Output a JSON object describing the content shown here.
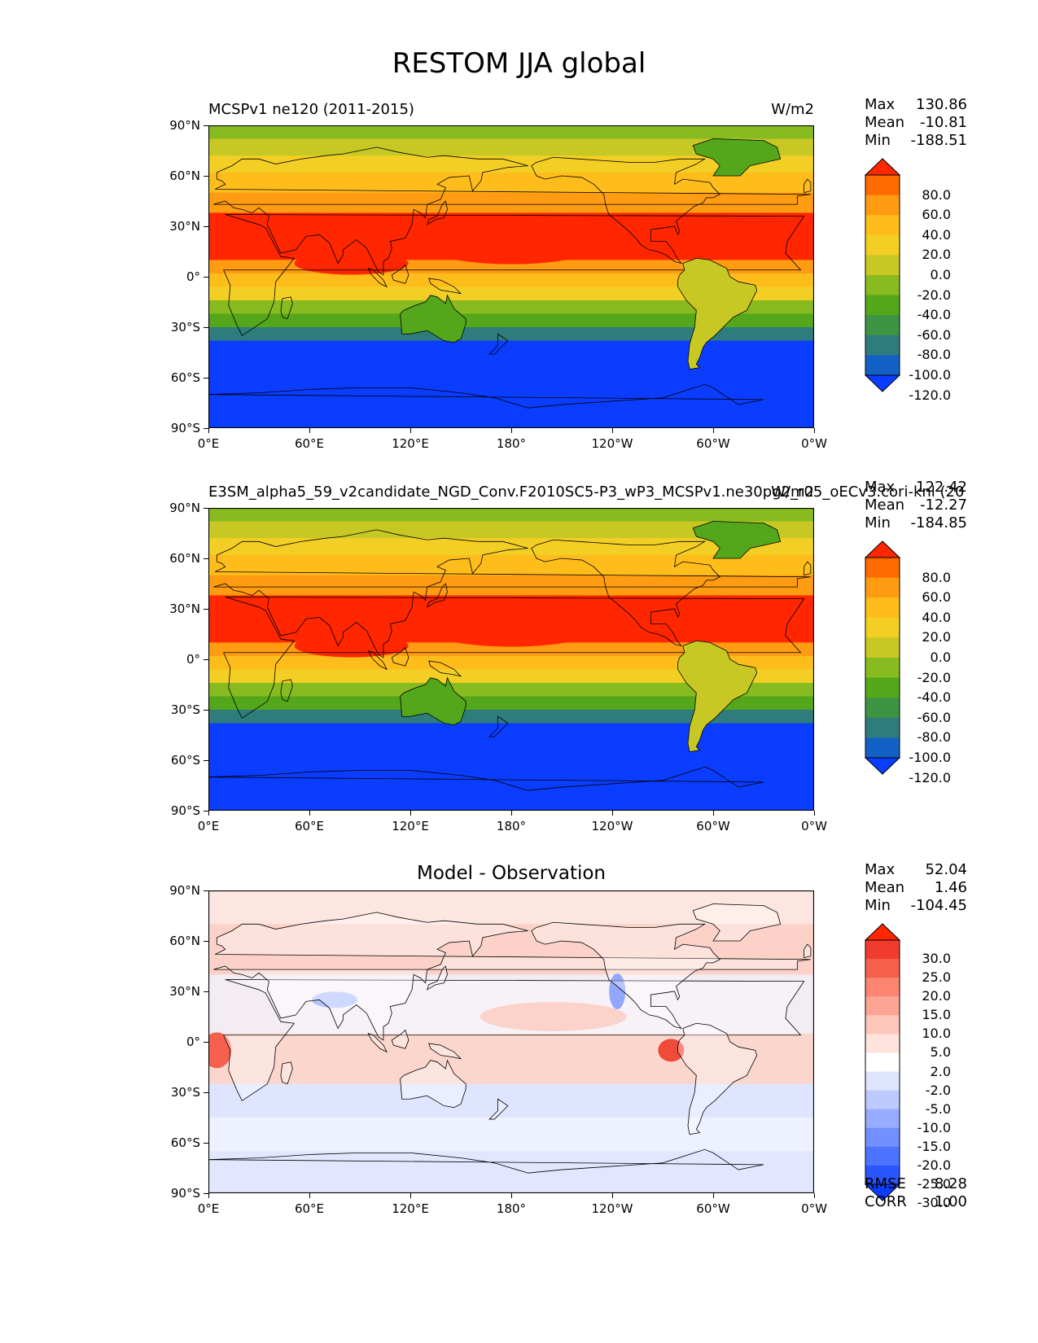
{
  "title": "RESTOM JJA global",
  "lat_ticks": [
    "90°N",
    "60°N",
    "30°N",
    "0°",
    "30°S",
    "60°S",
    "90°S"
  ],
  "lon_ticks": [
    "0°E",
    "60°E",
    "120°E",
    "180°",
    "120°W",
    "60°W",
    "0°W"
  ],
  "panels": [
    {
      "id": "model",
      "left_title": "MCSPv1 ne120 (2011-2015)",
      "center_title": "",
      "units": "W/m2",
      "stats": {
        "max_label": "Max",
        "max": "130.86",
        "mean_label": "Mean",
        "mean": "-10.81",
        "min_label": "Min",
        "min": "-188.51"
      },
      "colorbar": {
        "levels": [
          "80.0",
          "60.0",
          "40.0",
          "20.0",
          "0.0",
          "-20.0",
          "-40.0",
          "-60.0",
          "-80.0",
          "-100.0",
          "-120.0"
        ],
        "colors": [
          "#ff2600",
          "#ff6a00",
          "#ff9c11",
          "#ffbd1c",
          "#f3cf25",
          "#c8c824",
          "#87bb1f",
          "#54a61a",
          "#3d9443",
          "#2e7c7c",
          "#1361c4",
          "#0a3dff"
        ]
      }
    },
    {
      "id": "obs",
      "left_title": "E3SM_alpha5_59_v2candidate_NGD_Conv.F2010SC5-P3_wP3_MCSPv1.ne30pg2_r05_oECv3.cori-knl (20",
      "center_title": "",
      "units": "W/m2",
      "stats": {
        "max_label": "Max",
        "max": "122.42",
        "mean_label": "Mean",
        "mean": "-12.27",
        "min_label": "Min",
        "min": "-184.85"
      },
      "colorbar": {
        "levels": [
          "80.0",
          "60.0",
          "40.0",
          "20.0",
          "0.0",
          "-20.0",
          "-40.0",
          "-60.0",
          "-80.0",
          "-100.0",
          "-120.0"
        ],
        "colors": [
          "#ff2600",
          "#ff6a00",
          "#ff9c11",
          "#ffbd1c",
          "#f3cf25",
          "#c8c824",
          "#87bb1f",
          "#54a61a",
          "#3d9443",
          "#2e7c7c",
          "#1361c4",
          "#0a3dff"
        ]
      }
    },
    {
      "id": "diff",
      "left_title": "",
      "center_title": "Model - Observation",
      "units": "",
      "stats": {
        "max_label": "Max",
        "max": "52.04",
        "mean_label": "Mean",
        "mean": "1.46",
        "min_label": "Min",
        "min": "-104.45"
      },
      "colorbar": {
        "levels": [
          "30.0",
          "25.0",
          "20.0",
          "15.0",
          "10.0",
          "5.0",
          "2.0",
          "-2.0",
          "-5.0",
          "-10.0",
          "-15.0",
          "-20.0",
          "-25.0",
          "-30.0"
        ],
        "colors": [
          "#ff2600",
          "#f03c2e",
          "#f8604e",
          "#fb8570",
          "#fda594",
          "#fec6ba",
          "#ffe3dc",
          "#ffffff",
          "#dfe5ff",
          "#bccaff",
          "#97abff",
          "#7290ff",
          "#4d73ff",
          "#2a55ff",
          "#0a3dff"
        ]
      },
      "metrics": {
        "rmse_label": "RMSE",
        "rmse": "8.28",
        "corr_label": "CORR",
        "corr": "1.00"
      }
    }
  ]
}
